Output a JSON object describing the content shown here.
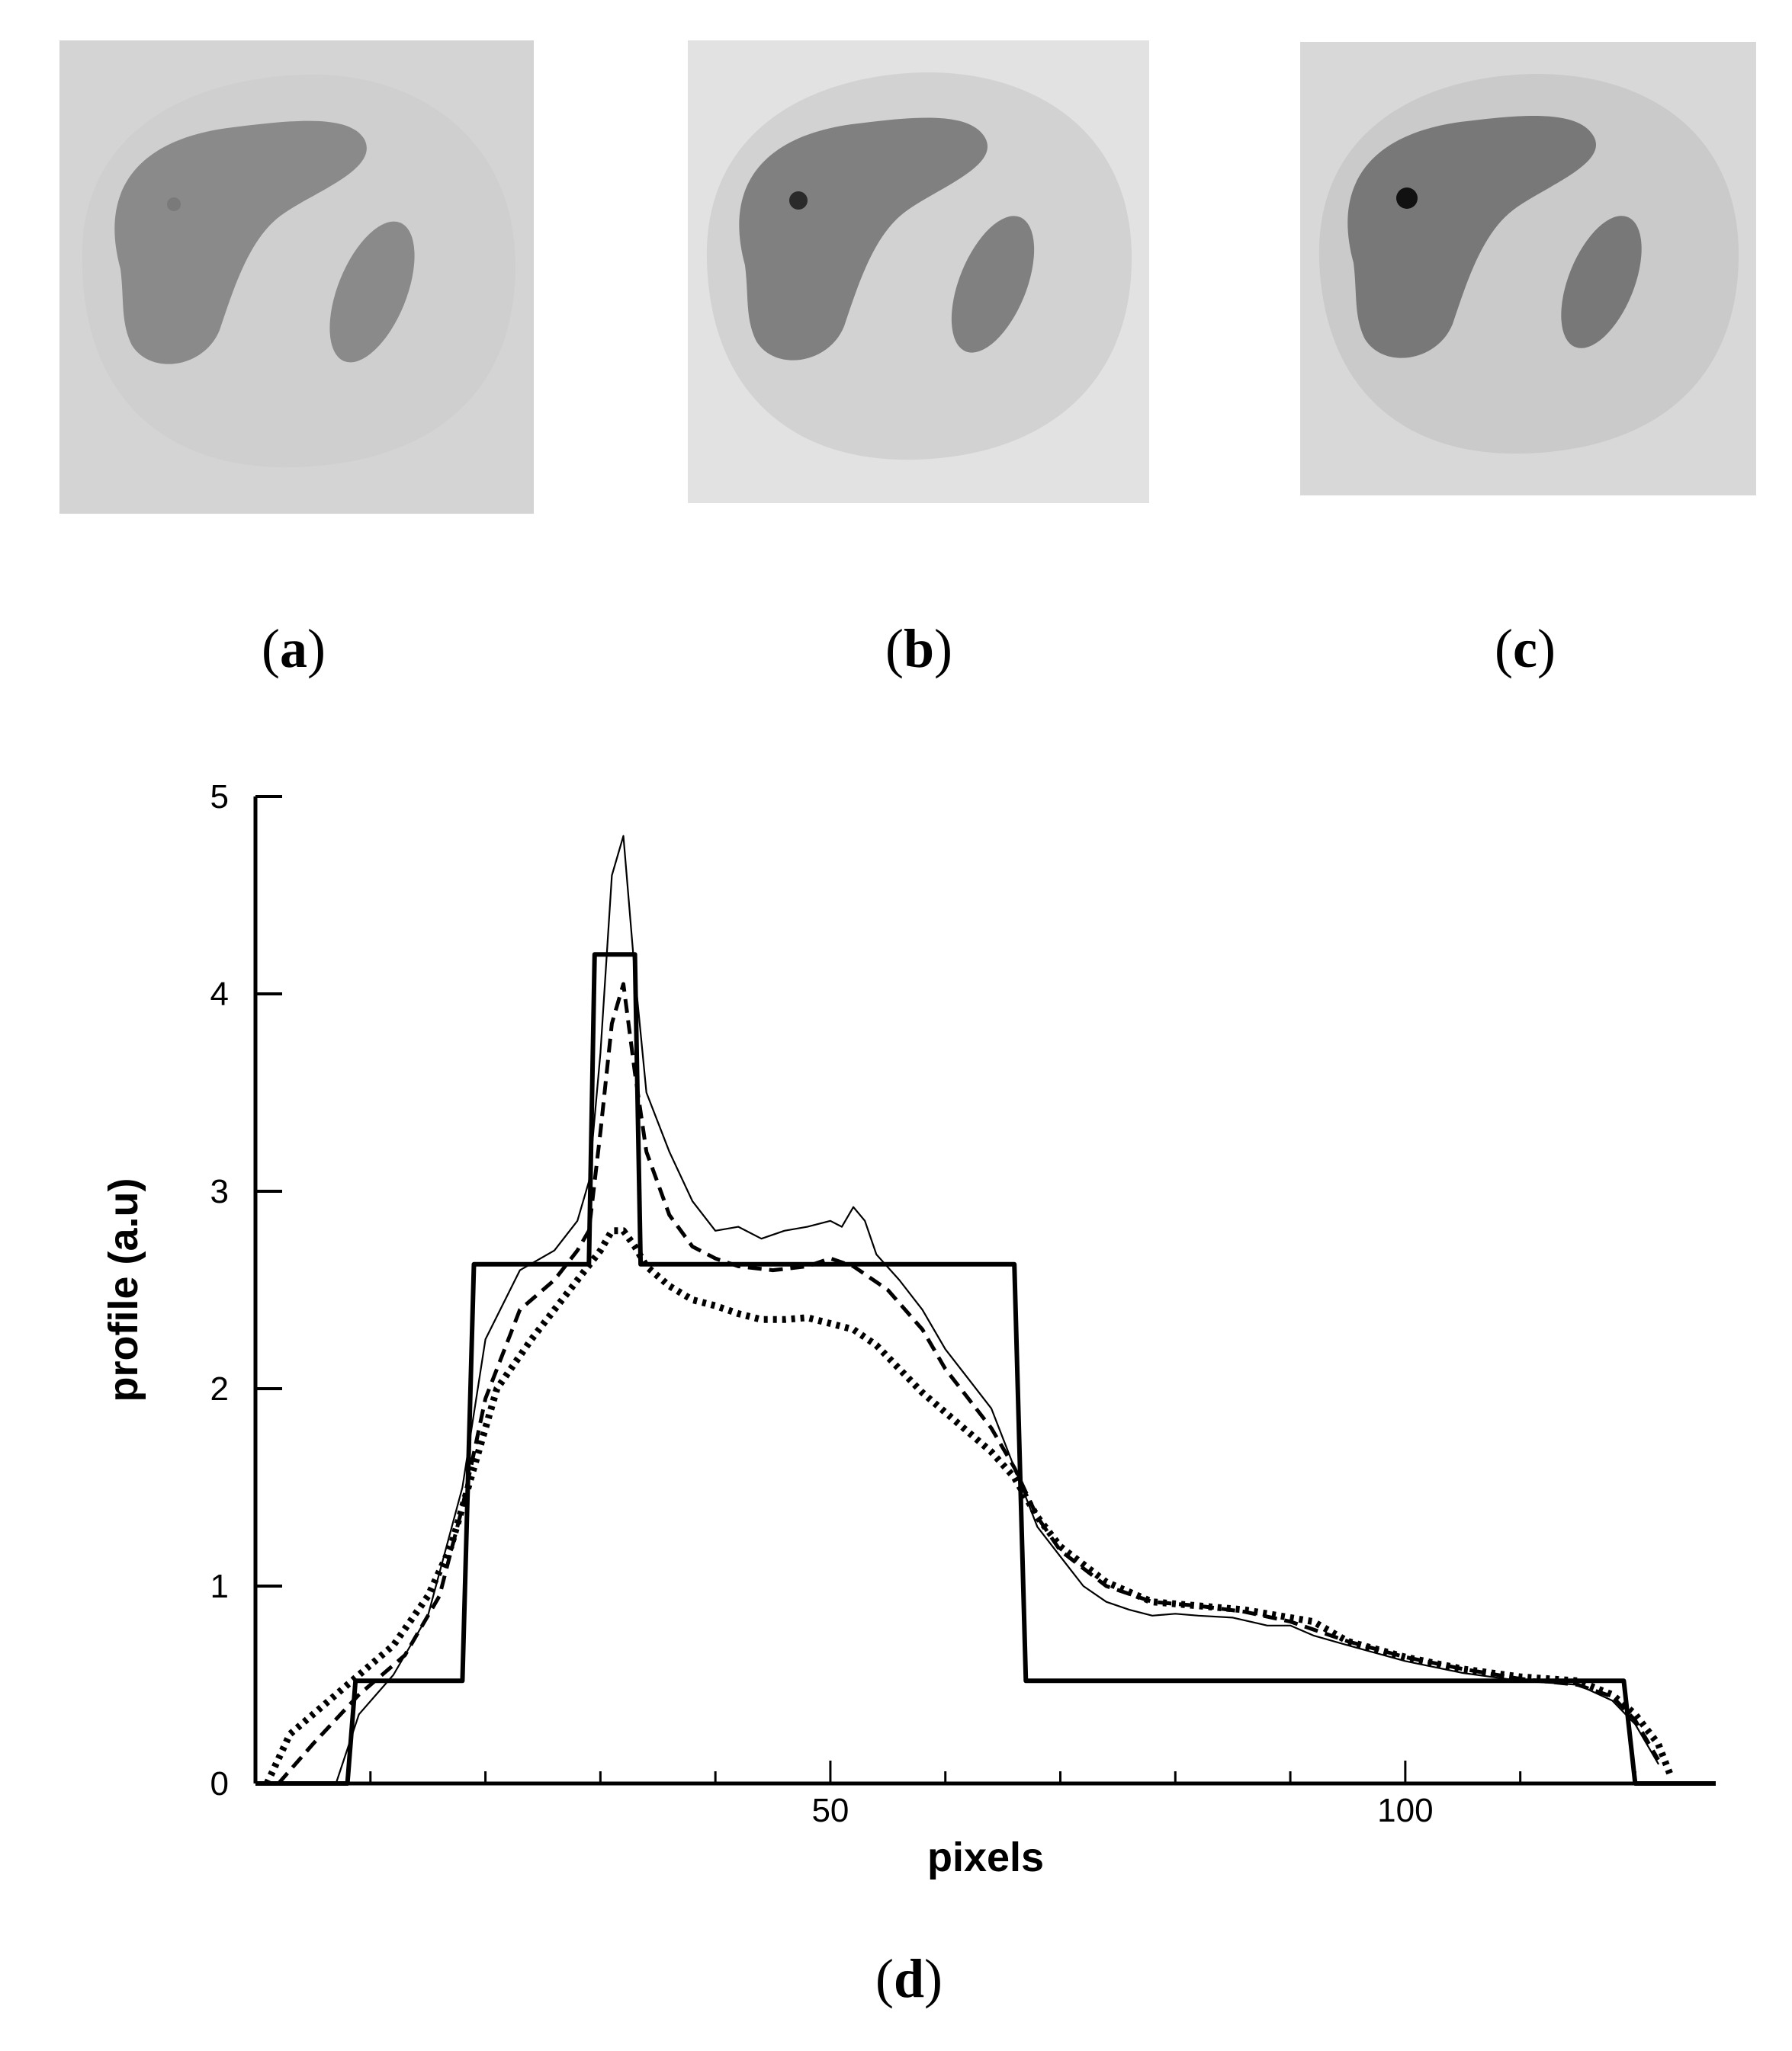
{
  "captions": {
    "a_open": "(",
    "a_letter": "a",
    "a_close": ")",
    "b_open": "(",
    "b_letter": "b",
    "b_close": ")",
    "c_open": "(",
    "c_letter": "c",
    "c_close": ")",
    "d_open": "(",
    "d_letter": "d",
    "d_close": ")"
  },
  "images": {
    "a": {
      "background": "#d4d4d4",
      "body": "#cfcfcf",
      "lesion": "#8a8a8a",
      "hot_spot": "#7a7a7a"
    },
    "b": {
      "background": "#e2e2e2",
      "body": "#d2d2d2",
      "lesion": "#808080",
      "hot_spot": "#2a2a2a"
    },
    "c": {
      "background": "#d8d8d8",
      "body": "#cacaca",
      "lesion": "#787878",
      "hot_spot": "#111111"
    }
  },
  "chart_data": {
    "type": "line",
    "title": "",
    "xlabel": "pixels",
    "ylabel": "profile (a.u)",
    "xlim": [
      0,
      127
    ],
    "ylim": [
      0,
      5
    ],
    "xticks": [
      50,
      100
    ],
    "yticks": [
      0,
      1,
      2,
      3,
      4,
      5
    ],
    "grid": false,
    "series": [
      {
        "style": "thick-solid",
        "x": [
          0,
          8,
          8.7,
          18,
          19,
          29,
          29.5,
          33,
          33.5,
          66,
          67,
          119,
          120,
          127
        ],
        "y": [
          0,
          0,
          0.52,
          0.52,
          2.63,
          2.63,
          4.2,
          4.2,
          2.63,
          2.63,
          0.52,
          0.52,
          0,
          0
        ]
      },
      {
        "style": "thin-solid",
        "x": [
          7,
          9,
          12,
          15,
          18,
          20,
          23,
          26,
          28,
          29,
          30,
          31,
          32,
          33,
          34,
          36,
          38,
          40,
          42,
          44,
          46,
          48,
          50,
          51,
          52,
          53,
          54,
          56,
          58,
          60,
          62,
          64,
          66,
          68,
          70,
          72,
          74,
          76,
          78,
          80,
          82,
          85,
          88,
          90,
          92,
          95,
          100,
          105,
          110,
          115,
          118,
          120,
          122
        ],
        "y": [
          0,
          0.35,
          0.55,
          0.85,
          1.5,
          2.25,
          2.6,
          2.7,
          2.85,
          3.05,
          3.7,
          4.6,
          4.8,
          4.1,
          3.5,
          3.2,
          2.95,
          2.8,
          2.82,
          2.76,
          2.8,
          2.82,
          2.85,
          2.82,
          2.92,
          2.85,
          2.68,
          2.55,
          2.4,
          2.2,
          2.05,
          1.9,
          1.6,
          1.3,
          1.15,
          1.0,
          0.92,
          0.88,
          0.85,
          0.86,
          0.85,
          0.84,
          0.8,
          0.8,
          0.75,
          0.7,
          0.62,
          0.56,
          0.52,
          0.5,
          0.42,
          0.3,
          0.1
        ]
      },
      {
        "style": "dashed",
        "x": [
          2,
          5,
          9,
          13,
          16,
          18,
          20,
          23,
          26,
          28,
          29,
          30,
          31,
          32,
          33,
          34,
          36,
          38,
          40,
          42,
          45,
          48,
          50,
          52,
          55,
          58,
          60,
          62,
          64,
          66,
          68,
          70,
          74,
          78,
          82,
          86,
          90,
          95,
          100,
          105,
          110,
          115,
          118,
          120,
          122
        ],
        "y": [
          0,
          0.2,
          0.45,
          0.65,
          0.95,
          1.4,
          1.95,
          2.4,
          2.55,
          2.7,
          2.8,
          3.3,
          3.85,
          4.05,
          3.6,
          3.2,
          2.88,
          2.72,
          2.66,
          2.62,
          2.6,
          2.62,
          2.66,
          2.62,
          2.5,
          2.3,
          2.1,
          1.95,
          1.8,
          1.6,
          1.35,
          1.18,
          1.0,
          0.92,
          0.9,
          0.87,
          0.82,
          0.72,
          0.64,
          0.58,
          0.53,
          0.5,
          0.44,
          0.32,
          0.12
        ]
      },
      {
        "style": "dotted",
        "x": [
          1,
          3,
          6,
          9,
          12,
          15,
          17,
          19,
          21,
          24,
          26,
          28,
          30,
          31,
          32,
          33,
          34,
          36,
          38,
          40,
          42,
          44,
          46,
          48,
          50,
          52,
          54,
          56,
          58,
          60,
          62,
          64,
          66,
          68,
          70,
          74,
          78,
          82,
          86,
          90,
          92,
          95,
          100,
          105,
          110,
          115,
          118,
          120,
          122,
          123
        ],
        "y": [
          0,
          0.25,
          0.4,
          0.55,
          0.7,
          0.95,
          1.2,
          1.6,
          2.0,
          2.25,
          2.4,
          2.55,
          2.7,
          2.8,
          2.8,
          2.72,
          2.62,
          2.52,
          2.45,
          2.42,
          2.38,
          2.35,
          2.35,
          2.36,
          2.33,
          2.3,
          2.22,
          2.1,
          1.98,
          1.88,
          1.78,
          1.68,
          1.55,
          1.35,
          1.2,
          1.02,
          0.92,
          0.9,
          0.88,
          0.84,
          0.82,
          0.72,
          0.64,
          0.58,
          0.54,
          0.52,
          0.45,
          0.35,
          0.2,
          0.05
        ]
      }
    ]
  }
}
